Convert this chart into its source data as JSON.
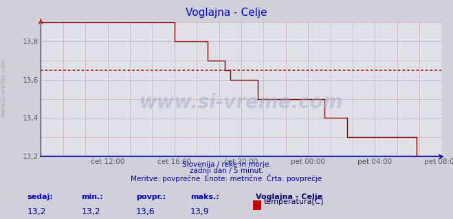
{
  "title": "Voglajna - Celje",
  "bg_color": "#d0d0d8",
  "plot_bg_color": "#e0e0e8",
  "grid_color_major": "#b8b8c8",
  "grid_color_minor": "#c8a0a0",
  "line_color": "#880000",
  "avg_line_color": "#cc0000",
  "avg_value": 13.65,
  "ylim_min": 13.2,
  "ylim_max": 13.9,
  "ytick_vals": [
    13.2,
    13.4,
    13.6,
    13.8
  ],
  "xtick_labels": [
    "čet 12:00",
    "čet 16:00",
    "čet 20:00",
    "pet 00:00",
    "pet 04:00",
    "pet 08:00"
  ],
  "xtick_positions": [
    48,
    96,
    144,
    192,
    240,
    288
  ],
  "n_points": 289,
  "subtitle_line1": "Slovenija / reke in morje.",
  "subtitle_line2": "zadnji dan / 5 minut.",
  "subtitle_line3": "Meritve: povprečne  Enote: metrične  Črta: povprečje",
  "footer_labels": [
    "sedaj:",
    "min.:",
    "povpr.:",
    "maks.:"
  ],
  "footer_values": [
    "13,2",
    "13,2",
    "13,6",
    "13,9"
  ],
  "legend_title": "Voglajna - Celje",
  "legend_label": "temperatura[C]",
  "legend_color": "#cc0000",
  "watermark_side": "www.si-vreme.com",
  "watermark_center": "www.si-vreme.com",
  "axis_color_bottom": "#0000aa",
  "axis_color_left": "#0000aa",
  "title_color": "#0000cc",
  "tick_color": "#555566",
  "subtitle_color": "#0000aa",
  "footer_label_color": "#0000cc",
  "footer_value_color": "#0000aa",
  "data_y": [
    13.9,
    13.9,
    13.9,
    13.9,
    13.9,
    13.9,
    13.9,
    13.9,
    13.9,
    13.9,
    13.9,
    13.9,
    13.9,
    13.9,
    13.9,
    13.9,
    13.9,
    13.9,
    13.9,
    13.9,
    13.9,
    13.9,
    13.9,
    13.9,
    13.9,
    13.9,
    13.9,
    13.9,
    13.9,
    13.9,
    13.9,
    13.9,
    13.9,
    13.9,
    13.9,
    13.9,
    13.9,
    13.9,
    13.9,
    13.9,
    13.9,
    13.9,
    13.9,
    13.9,
    13.9,
    13.9,
    13.9,
    13.9,
    13.9,
    13.9,
    13.9,
    13.9,
    13.9,
    13.9,
    13.9,
    13.9,
    13.9,
    13.9,
    13.9,
    13.9,
    13.9,
    13.9,
    13.9,
    13.9,
    13.9,
    13.9,
    13.9,
    13.9,
    13.9,
    13.9,
    13.9,
    13.9,
    13.9,
    13.9,
    13.9,
    13.9,
    13.9,
    13.9,
    13.9,
    13.9,
    13.9,
    13.9,
    13.9,
    13.9,
    13.9,
    13.9,
    13.9,
    13.9,
    13.9,
    13.9,
    13.9,
    13.9,
    13.9,
    13.9,
    13.9,
    13.9,
    13.8,
    13.8,
    13.8,
    13.8,
    13.8,
    13.8,
    13.8,
    13.8,
    13.8,
    13.8,
    13.8,
    13.8,
    13.8,
    13.8,
    13.8,
    13.8,
    13.8,
    13.8,
    13.8,
    13.8,
    13.8,
    13.8,
    13.8,
    13.8,
    13.7,
    13.7,
    13.7,
    13.7,
    13.7,
    13.7,
    13.7,
    13.7,
    13.7,
    13.7,
    13.7,
    13.7,
    13.65,
    13.65,
    13.65,
    13.65,
    13.6,
    13.6,
    13.6,
    13.6,
    13.6,
    13.6,
    13.6,
    13.6,
    13.6,
    13.6,
    13.6,
    13.6,
    13.6,
    13.6,
    13.6,
    13.6,
    13.6,
    13.6,
    13.6,
    13.6,
    13.5,
    13.5,
    13.5,
    13.5,
    13.5,
    13.5,
    13.5,
    13.5,
    13.5,
    13.5,
    13.5,
    13.5,
    13.5,
    13.5,
    13.5,
    13.5,
    13.5,
    13.5,
    13.5,
    13.5,
    13.5,
    13.5,
    13.5,
    13.5,
    13.5,
    13.5,
    13.5,
    13.5,
    13.5,
    13.5,
    13.5,
    13.5,
    13.5,
    13.5,
    13.5,
    13.5,
    13.5,
    13.5,
    13.5,
    13.5,
    13.5,
    13.5,
    13.5,
    13.5,
    13.5,
    13.5,
    13.5,
    13.5,
    13.4,
    13.4,
    13.4,
    13.4,
    13.4,
    13.4,
    13.4,
    13.4,
    13.4,
    13.4,
    13.4,
    13.4,
    13.4,
    13.4,
    13.4,
    13.4,
    13.3,
    13.3,
    13.3,
    13.3,
    13.3,
    13.3,
    13.3,
    13.3,
    13.3,
    13.3,
    13.3,
    13.3,
    13.3,
    13.3,
    13.3,
    13.3,
    13.3,
    13.3,
    13.3,
    13.3,
    13.3,
    13.3,
    13.3,
    13.3,
    13.3,
    13.3,
    13.3,
    13.3,
    13.3,
    13.3,
    13.3,
    13.3,
    13.3,
    13.3,
    13.3,
    13.3,
    13.3,
    13.3,
    13.3,
    13.3,
    13.3,
    13.3,
    13.3,
    13.3,
    13.3,
    13.3,
    13.3,
    13.3,
    13.3,
    13.3,
    13.2,
    13.2
  ]
}
